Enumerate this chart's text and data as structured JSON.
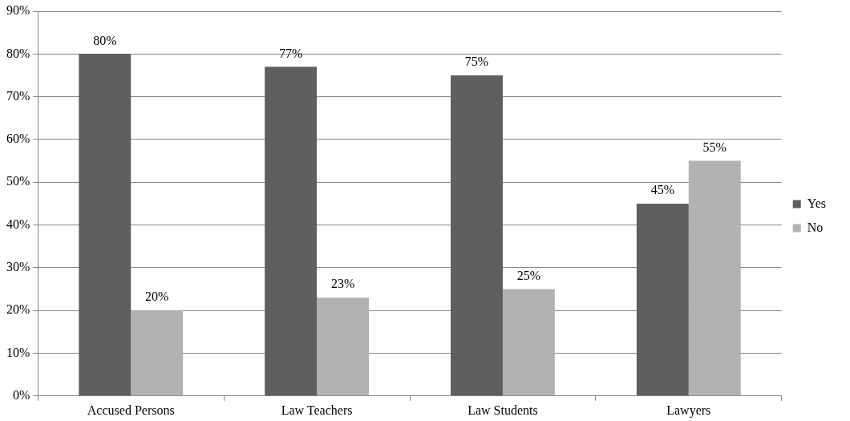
{
  "chart_data": {
    "type": "bar",
    "categories": [
      "Accused Persons",
      "Law Teachers",
      "Law Students",
      "Lawyers"
    ],
    "series": [
      {
        "name": "Yes",
        "color": "#5f5f5f",
        "values": [
          80,
          77,
          75,
          45
        ],
        "value_labels": [
          "80%",
          "77%",
          "75%",
          "45%"
        ]
      },
      {
        "name": "No",
        "color": "#b2b2b2",
        "values": [
          20,
          23,
          25,
          55
        ],
        "value_labels": [
          "20%",
          "23%",
          "25%",
          "55%"
        ]
      }
    ],
    "ylim": [
      0,
      90
    ],
    "yticks": [
      {
        "value": 0,
        "label": "0%"
      },
      {
        "value": 10,
        "label": "10%"
      },
      {
        "value": 20,
        "label": "20%"
      },
      {
        "value": 30,
        "label": "30%"
      },
      {
        "value": 40,
        "label": "40%"
      },
      {
        "value": 50,
        "label": "50%"
      },
      {
        "value": 60,
        "label": "60%"
      },
      {
        "value": 70,
        "label": "70%"
      },
      {
        "value": 80,
        "label": "80%"
      },
      {
        "value": 90,
        "label": "90%"
      }
    ],
    "grid": "y",
    "legend": "right"
  }
}
